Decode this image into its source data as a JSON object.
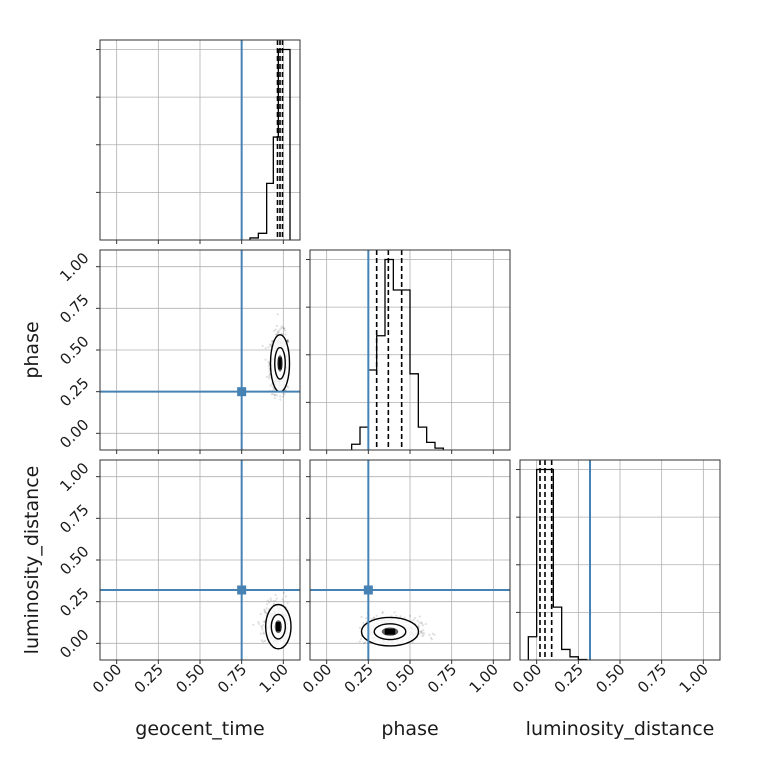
{
  "chart_data": {
    "type": "corner",
    "parameters": [
      "geocent_time",
      "phase",
      "luminosity_distance"
    ],
    "axis_range": [
      -0.1,
      1.1
    ],
    "tick_values": [
      0.0,
      0.25,
      0.5,
      0.75,
      1.0
    ],
    "tick_labels": [
      "0.00",
      "0.25",
      "0.50",
      "0.75",
      "1.00"
    ],
    "grid": true,
    "truths": [
      0.75,
      0.25,
      0.32
    ],
    "truth_color": "#4682b4",
    "quantiles": [
      [
        0.965,
        0.98,
        0.995
      ],
      [
        0.3,
        0.37,
        0.45
      ],
      [
        0.02,
        0.05,
        0.09
      ]
    ],
    "histograms": [
      {
        "bin_edges": [
          0.8,
          0.85,
          0.9,
          0.94,
          0.97,
          1.0,
          1.04
        ],
        "counts": [
          0.4,
          1.3,
          11,
          20,
          37,
          37
        ]
      },
      {
        "bin_edges": [
          0.15,
          0.2,
          0.25,
          0.3,
          0.35,
          0.4,
          0.45,
          0.5,
          0.55,
          0.6,
          0.65,
          0.7
        ],
        "counts": [
          1.5,
          6,
          21,
          30,
          50,
          42,
          42,
          20,
          6,
          2,
          0.5
        ]
      },
      {
        "bin_edges": [
          -0.05,
          0.0,
          0.05,
          0.1,
          0.15,
          0.2,
          0.25,
          0.3
        ],
        "counts": [
          22,
          180,
          180,
          50,
          10,
          3,
          0.5
        ]
      }
    ],
    "scatter_panels": [
      {
        "x": "geocent_time",
        "y": "phase",
        "center": [
          0.98,
          0.42
        ],
        "spread": [
          0.03,
          0.09
        ],
        "min": [
          0.85,
          0.2
        ],
        "max": [
          1.03,
          0.72
        ]
      },
      {
        "x": "geocent_time",
        "y": "luminosity_distance",
        "center": [
          0.97,
          0.1
        ],
        "spread": [
          0.04,
          0.07
        ],
        "min": [
          0.8,
          0.0
        ],
        "max": [
          1.03,
          0.38
        ]
      },
      {
        "x": "phase",
        "y": "luminosity_distance",
        "center": [
          0.38,
          0.07
        ],
        "spread": [
          0.09,
          0.045
        ],
        "min": [
          0.18,
          0.0
        ],
        "max": [
          0.7,
          0.4
        ]
      }
    ]
  }
}
